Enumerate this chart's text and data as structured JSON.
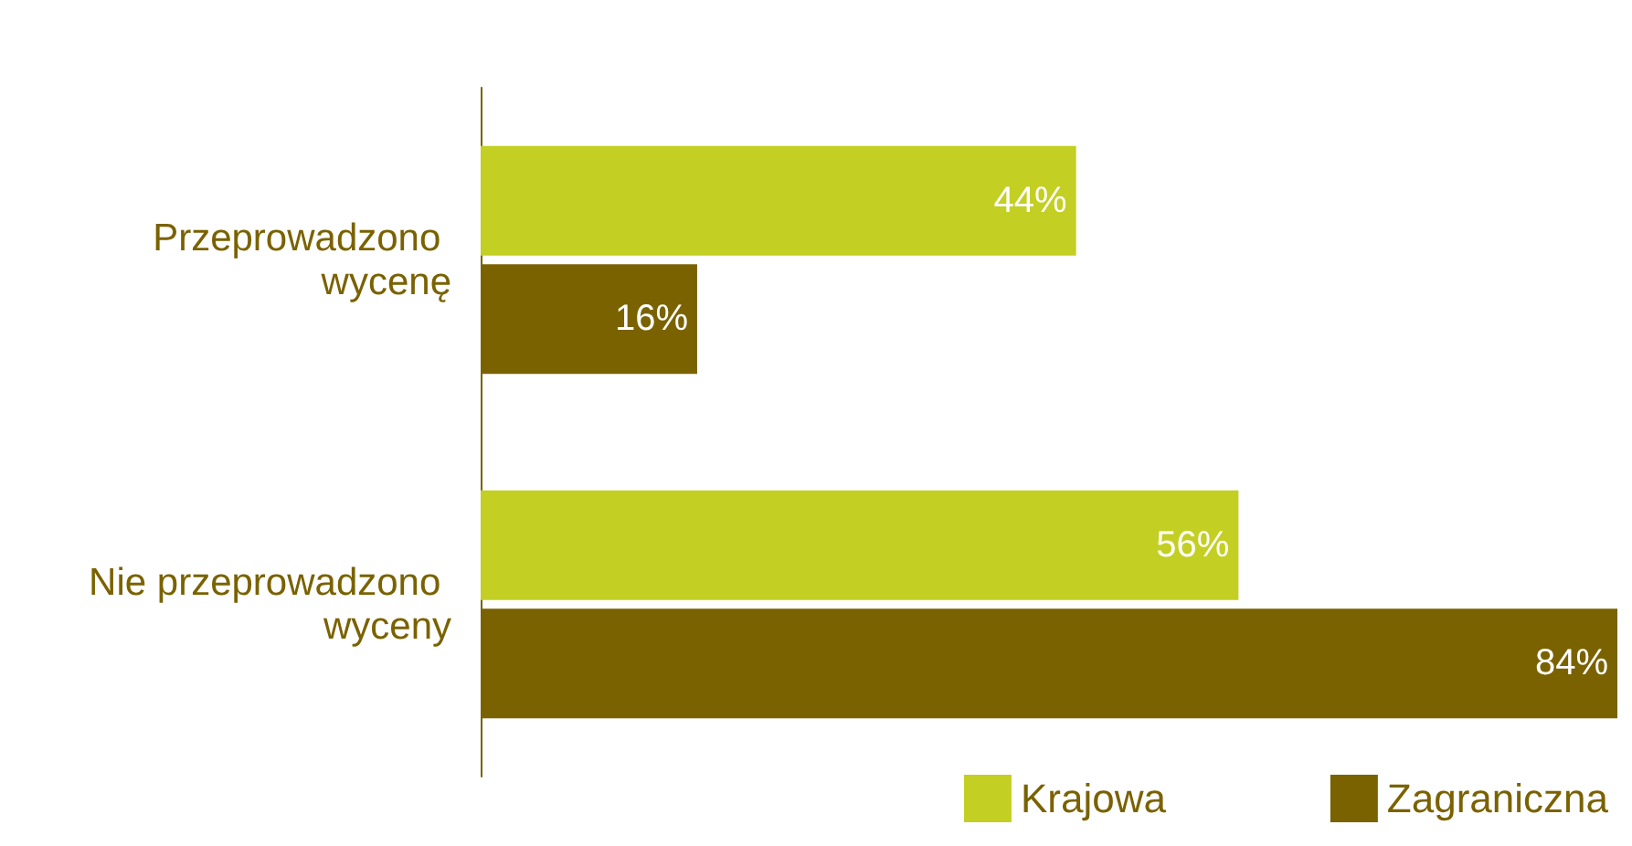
{
  "chart_data": {
    "type": "bar",
    "orientation": "horizontal",
    "categories": [
      "Przeprowadzono wycenę",
      "Nie przeprowadzono wyceny"
    ],
    "series": [
      {
        "name": "Krajowa",
        "color": "#c3cf22",
        "values": [
          44,
          56
        ],
        "value_labels": [
          "44%",
          "56%"
        ]
      },
      {
        "name": "Zagraniczna",
        "color": "#7a6200",
        "values": [
          16,
          84
        ],
        "value_labels": [
          "16%",
          "84%"
        ]
      }
    ],
    "legend": "bottom right"
  }
}
